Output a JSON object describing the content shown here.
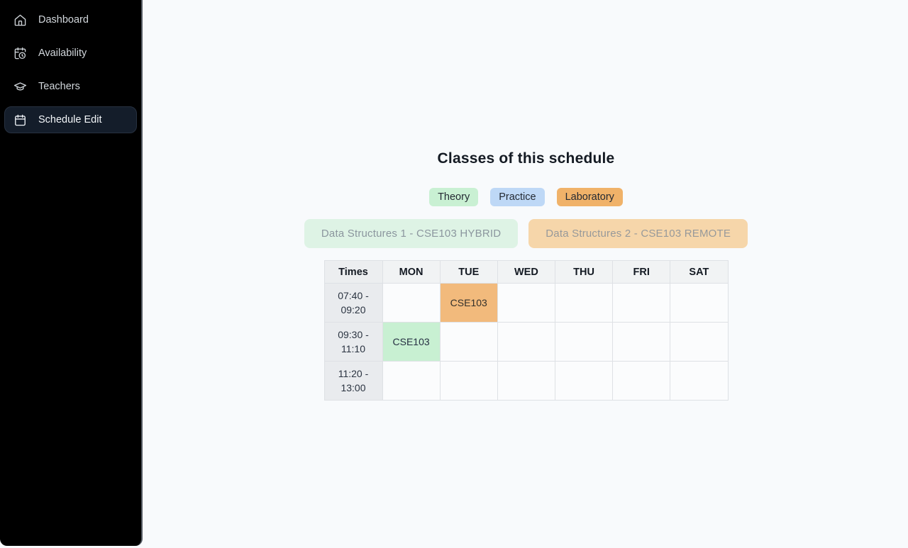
{
  "sidebar": {
    "items": [
      {
        "label": "Dashboard",
        "icon": "home-icon",
        "active": false
      },
      {
        "label": "Availability",
        "icon": "calendar-clock-icon",
        "active": false
      },
      {
        "label": "Teachers",
        "icon": "graduation-cap-icon",
        "active": false
      },
      {
        "label": "Schedule Edit",
        "icon": "calendar-icon",
        "active": true
      }
    ]
  },
  "main": {
    "title": "Classes of this schedule",
    "legend": [
      {
        "label": "Theory",
        "type": "theory",
        "bg": "#c9f0d3"
      },
      {
        "label": "Practice",
        "type": "practice",
        "bg": "#bed8f6"
      },
      {
        "label": "Laboratory",
        "type": "laboratory",
        "bg": "#f0b269"
      }
    ],
    "classes": [
      {
        "label": "Data Structures 1 - CSE103 HYBRID",
        "bg": "#def3e5",
        "text_color": "#8b969e"
      },
      {
        "label": "Data Structures 2 - CSE103 REMOTE",
        "bg": "#f6d6aa",
        "text_color": "#97999a"
      }
    ],
    "table": {
      "headers": [
        "Times",
        "MON",
        "TUE",
        "WED",
        "THU",
        "FRI",
        "SAT"
      ],
      "rows": [
        {
          "time_line1": "07:40 -",
          "time_line2": "09:20",
          "cells": [
            "",
            "CSE103",
            "",
            "",
            "",
            ""
          ],
          "cell_types": [
            "",
            "laboratory",
            "",
            "",
            "",
            ""
          ]
        },
        {
          "time_line1": "09:30 -",
          "time_line2": "11:10",
          "cells": [
            "CSE103",
            "",
            "",
            "",
            "",
            ""
          ],
          "cell_types": [
            "theory",
            "",
            "",
            "",
            "",
            ""
          ]
        },
        {
          "time_line1": "11:20 -",
          "time_line2": "13:00",
          "cells": [
            "",
            "",
            "",
            "",
            "",
            ""
          ],
          "cell_types": [
            "",
            "",
            "",
            "",
            "",
            ""
          ]
        }
      ]
    }
  },
  "colors": {
    "sidebar_bg": "#000000",
    "page_bg": "#f8fafc",
    "theory": "#c9f0d3",
    "practice": "#bed8f6",
    "laboratory": "#f0b269",
    "cell_theory": "#c8f0d2",
    "cell_laboratory": "#f2ba7c"
  }
}
